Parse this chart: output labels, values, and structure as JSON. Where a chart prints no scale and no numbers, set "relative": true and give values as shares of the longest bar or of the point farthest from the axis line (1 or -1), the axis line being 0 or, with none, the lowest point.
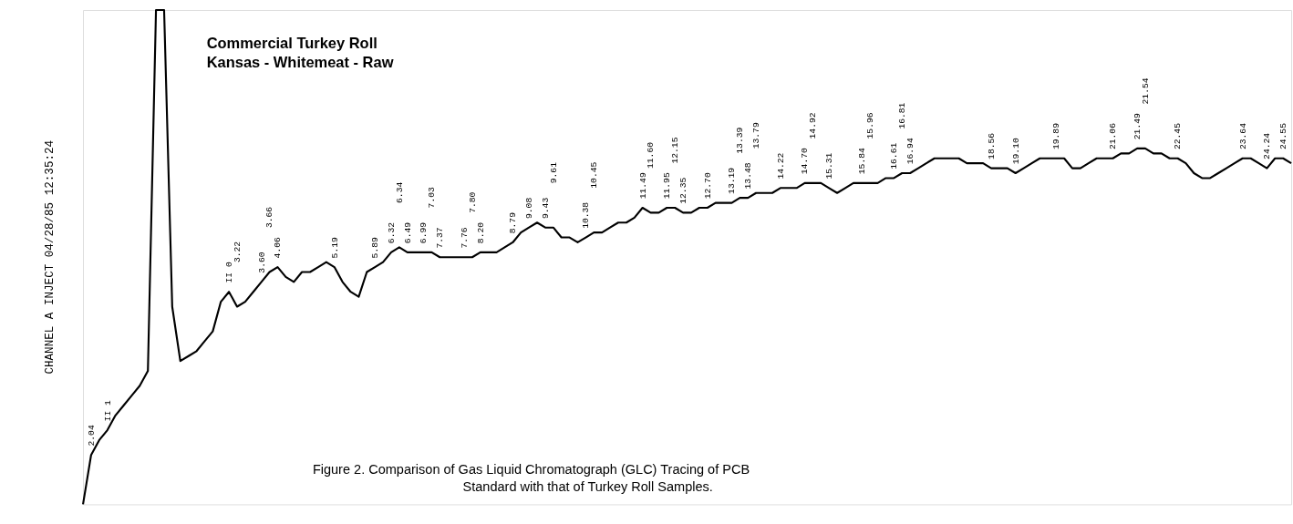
{
  "chart_data": {
    "type": "line",
    "relative": true,
    "tick_labels": false,
    "grid": false,
    "marker": "none",
    "line_style": "solid",
    "title": "Commercial Turkey Roll",
    "subtitle": "Kansas - Whitemeat - Raw",
    "categories": [
      null,
      "2.04",
      null,
      "II 1",
      null,
      null,
      null,
      null,
      null,
      null,
      null,
      null,
      null,
      null,
      null,
      null,
      null,
      null,
      "II 0",
      "3.22",
      null,
      null,
      "3.60",
      "3.66",
      "4.06",
      null,
      null,
      null,
      null,
      null,
      null,
      "5.19",
      null,
      null,
      null,
      null,
      "5.89",
      null,
      "6.32",
      "6.34",
      "6.49",
      null,
      "6.99",
      "7.03",
      "7.37",
      null,
      null,
      "7.76",
      "7.80",
      "8.20",
      null,
      null,
      null,
      "8.79",
      null,
      "9.08",
      null,
      "9.43",
      "9.61",
      null,
      null,
      null,
      "10.38",
      "10.45",
      null,
      null,
      null,
      null,
      null,
      "11.49",
      "11.60",
      null,
      "11.95",
      "12.15",
      "12.35",
      null,
      null,
      "12.70",
      null,
      null,
      "13.19",
      "13.39",
      "13.48",
      "13.79",
      null,
      null,
      "14.22",
      null,
      null,
      "14.70",
      "14.92",
      null,
      "15.31",
      null,
      null,
      null,
      "15.84",
      "15.96",
      null,
      null,
      "16.61",
      "16.81",
      "16.94",
      null,
      null,
      null,
      null,
      null,
      null,
      null,
      null,
      null,
      "18.56",
      null,
      null,
      "19.10",
      null,
      null,
      null,
      null,
      "19.89",
      null,
      null,
      null,
      null,
      null,
      null,
      "21.06",
      null,
      null,
      "21.49",
      "21.54",
      null,
      null,
      null,
      "22.45",
      null,
      null,
      null,
      null,
      null,
      null,
      null,
      "23.64",
      null,
      null,
      "24.24",
      null,
      "24.55",
      null
    ],
    "series": [
      {
        "color": "#000000",
        "values": [
          0,
          0.1,
          0.13,
          0.15,
          0.18,
          0.2,
          0.22,
          0.24,
          0.27,
          1,
          1,
          0.4,
          0.29,
          0.3,
          0.31,
          0.33,
          0.35,
          0.41,
          0.43,
          0.4,
          0.41,
          0.43,
          0.45,
          0.47,
          0.48,
          0.46,
          0.45,
          0.47,
          0.47,
          0.48,
          0.49,
          0.48,
          0.45,
          0.43,
          0.42,
          0.47,
          0.48,
          0.49,
          0.51,
          0.52,
          0.51,
          0.51,
          0.51,
          0.51,
          0.5,
          0.5,
          0.5,
          0.5,
          0.5,
          0.51,
          0.51,
          0.51,
          0.52,
          0.53,
          0.55,
          0.56,
          0.57,
          0.56,
          0.56,
          0.54,
          0.54,
          0.53,
          0.54,
          0.55,
          0.55,
          0.56,
          0.57,
          0.57,
          0.58,
          0.6,
          0.59,
          0.59,
          0.6,
          0.6,
          0.59,
          0.59,
          0.6,
          0.6,
          0.61,
          0.61,
          0.61,
          0.62,
          0.62,
          0.63,
          0.63,
          0.63,
          0.64,
          0.64,
          0.64,
          0.65,
          0.65,
          0.65,
          0.64,
          0.63,
          0.64,
          0.65,
          0.65,
          0.65,
          0.65,
          0.66,
          0.66,
          0.67,
          0.67,
          0.68,
          0.69,
          0.7,
          0.7,
          0.7,
          0.7,
          0.69,
          0.69,
          0.69,
          0.68,
          0.68,
          0.68,
          0.67,
          0.68,
          0.69,
          0.7,
          0.7,
          0.7,
          0.7,
          0.68,
          0.68,
          0.69,
          0.7,
          0.7,
          0.7,
          0.71,
          0.71,
          0.72,
          0.72,
          0.71,
          0.71,
          0.7,
          0.7,
          0.69,
          0.67,
          0.66,
          0.66,
          0.67,
          0.68,
          0.69,
          0.7,
          0.7,
          0.69,
          0.68,
          0.7,
          0.7,
          0.69
        ]
      }
    ],
    "annotations": [
      "CHANNEL A    INJECT   04/28/85 12:35:24",
      "Figure 2.  Comparison of Gas Liquid Chromatograph (GLC) Tracing of PCB",
      "Standard with that of Turkey Roll Samples."
    ]
  }
}
